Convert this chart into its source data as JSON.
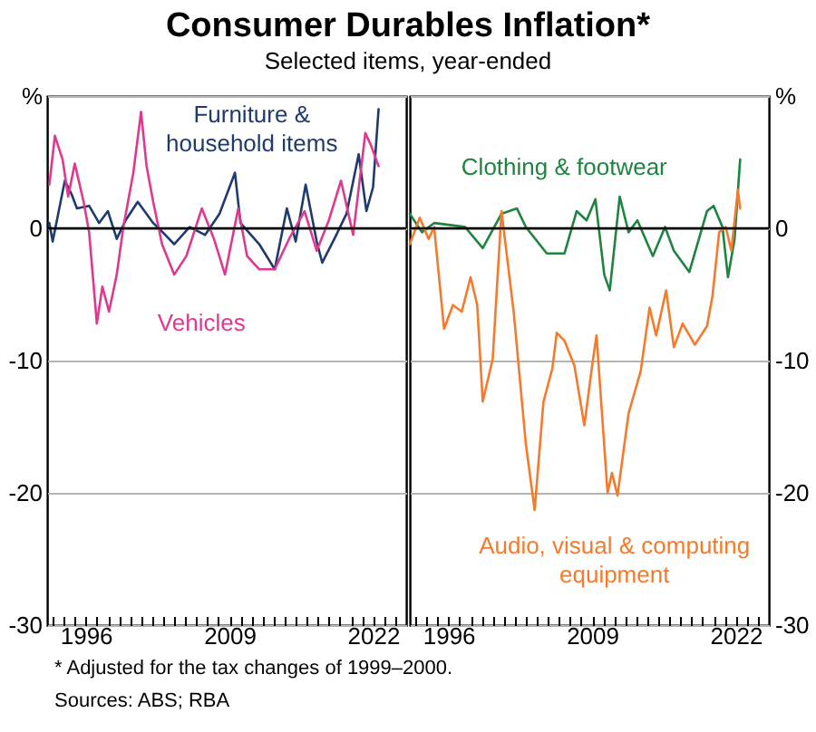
{
  "chart_data": [
    {
      "type": "line",
      "title": "Consumer Durables Inflation*",
      "subtitle": "Selected items, year-ended",
      "annotations": [
        "* Adjusted for the tax changes of 1999–2000.",
        "Sources: ABS; RBA"
      ],
      "xlim": [
        1992.5,
        2025
      ],
      "ylim": [
        -30,
        10
      ],
      "xticks": [
        {
          "value": 1993,
          "label": null
        },
        {
          "value": 1994,
          "label": null
        },
        {
          "value": 1995,
          "label": null
        },
        1996,
        {
          "value": 1997,
          "label": null
        },
        {
          "value": 1998,
          "label": null
        },
        {
          "value": 1999,
          "label": null
        },
        {
          "value": 2000,
          "label": null
        },
        {
          "value": 2001,
          "label": null
        },
        {
          "value": 2002,
          "label": null
        },
        {
          "value": 2003,
          "label": null
        },
        {
          "value": 2004,
          "label": null
        },
        {
          "value": 2005,
          "label": null
        },
        {
          "value": 2006,
          "label": null
        },
        {
          "value": 2007,
          "label": null
        },
        {
          "value": 2008,
          "label": null
        },
        2009,
        {
          "value": 2010,
          "label": null
        },
        {
          "value": 2011,
          "label": null
        },
        {
          "value": 2012,
          "label": null
        },
        {
          "value": 2013,
          "label": null
        },
        {
          "value": 2014,
          "label": null
        },
        {
          "value": 2015,
          "label": null
        },
        {
          "value": 2016,
          "label": null
        },
        {
          "value": 2017,
          "label": null
        },
        {
          "value": 2018,
          "label": null
        },
        {
          "value": 2019,
          "label": null
        },
        {
          "value": 2020,
          "label": null
        },
        {
          "value": 2021,
          "label": null
        },
        2022,
        {
          "value": 2023,
          "label": null
        },
        {
          "value": 2024,
          "label": null
        }
      ],
      "yticks": [
        -30,
        -20,
        -10,
        0,
        {
          "value": 10,
          "label": "%"
        }
      ],
      "grid": "y",
      "ref_lines": [
        {
          "axis": "y",
          "value": 0,
          "color": "#000000"
        }
      ],
      "series": [
        {
          "name": "Furniture & household items",
          "color": "#1f3a6e",
          "x": [
            1992.7,
            1993.0,
            1993.6,
            1994.1,
            1994.7,
            1995.2,
            1996.3,
            1997.2,
            1998.0,
            1998.8,
            1999.6,
            2000.7,
            2002.1,
            2003.2,
            2004.0,
            2005.4,
            2006.8,
            2008.1,
            2009.5,
            2010.0,
            2011.7,
            2013.1,
            2014.2,
            2015.0,
            2015.9,
            2016.9,
            2017.4,
            2018.5,
            2019.6,
            2020.7,
            2021.4,
            2022.0,
            2022.5
          ],
          "values": [
            0.4,
            -1.0,
            1.5,
            3.6,
            2.6,
            1.5,
            1.7,
            0.4,
            1.3,
            -0.8,
            0.6,
            2.0,
            0.4,
            -0.5,
            -1.2,
            0.1,
            -0.5,
            1.1,
            4.2,
            0.4,
            -1.2,
            -3.1,
            1.5,
            -1.0,
            3.3,
            -1.0,
            -2.6,
            -0.8,
            1.1,
            5.6,
            1.3,
            3.1,
            9.0
          ]
        },
        {
          "name": "Vehicles",
          "color": "#e0388f",
          "x": [
            1992.7,
            1993.2,
            1993.9,
            1994.4,
            1995.0,
            1995.8,
            1996.3,
            1997.0,
            1997.5,
            1998.1,
            1998.8,
            1999.4,
            2000.3,
            2001.0,
            2001.5,
            2002.1,
            2002.9,
            2004.0,
            2005.1,
            2006.5,
            2007.6,
            2008.6,
            2009.8,
            2010.6,
            2011.7,
            2013.1,
            2014.4,
            2015.8,
            2016.9,
            2018.0,
            2019.1,
            2020.2,
            2021.3,
            2021.8,
            2022.5
          ],
          "values": [
            3.3,
            7.0,
            5.2,
            2.4,
            4.9,
            2.0,
            -0.3,
            -7.2,
            -4.4,
            -6.3,
            -3.5,
            0.1,
            4.2,
            8.8,
            4.7,
            2.0,
            -1.2,
            -3.5,
            -2.1,
            1.5,
            -0.8,
            -3.5,
            1.5,
            -2.1,
            -3.1,
            -3.1,
            -0.8,
            1.3,
            -1.7,
            0.6,
            3.6,
            -0.5,
            7.2,
            6.3,
            4.7
          ]
        }
      ]
    },
    {
      "type": "line",
      "xlim": [
        1992.5,
        2025
      ],
      "ylim": [
        -30,
        10
      ],
      "xticks": [
        {
          "value": 1993,
          "label": null
        },
        {
          "value": 1994,
          "label": null
        },
        {
          "value": 1995,
          "label": null
        },
        1996,
        {
          "value": 1997,
          "label": null
        },
        {
          "value": 1998,
          "label": null
        },
        {
          "value": 1999,
          "label": null
        },
        {
          "value": 2000,
          "label": null
        },
        {
          "value": 2001,
          "label": null
        },
        {
          "value": 2002,
          "label": null
        },
        {
          "value": 2003,
          "label": null
        },
        {
          "value": 2004,
          "label": null
        },
        {
          "value": 2005,
          "label": null
        },
        {
          "value": 2006,
          "label": null
        },
        {
          "value": 2007,
          "label": null
        },
        {
          "value": 2008,
          "label": null
        },
        2009,
        {
          "value": 2010,
          "label": null
        },
        {
          "value": 2011,
          "label": null
        },
        {
          "value": 2012,
          "label": null
        },
        {
          "value": 2013,
          "label": null
        },
        {
          "value": 2014,
          "label": null
        },
        {
          "value": 2015,
          "label": null
        },
        {
          "value": 2016,
          "label": null
        },
        {
          "value": 2017,
          "label": null
        },
        {
          "value": 2018,
          "label": null
        },
        {
          "value": 2019,
          "label": null
        },
        {
          "value": 2020,
          "label": null
        },
        {
          "value": 2021,
          "label": null
        },
        2022,
        {
          "value": 2023,
          "label": null
        },
        {
          "value": 2024,
          "label": null
        }
      ],
      "yticks": [
        -30,
        -20,
        -10,
        0,
        {
          "value": 10,
          "label": "%"
        }
      ],
      "grid": "y",
      "ref_lines": [
        {
          "axis": "y",
          "value": 0,
          "color": "#000000"
        }
      ],
      "series": [
        {
          "name": "Clothing & footwear",
          "color": "#1e8440",
          "x": [
            1992.5,
            1993.6,
            1994.7,
            1997.5,
            1999.1,
            2000.8,
            2002.2,
            2003.0,
            2004.9,
            2006.5,
            2007.6,
            2008.5,
            2009.3,
            2010.1,
            2010.6,
            2011.5,
            2012.3,
            2013.1,
            2014.5,
            2015.6,
            2016.4,
            2017.8,
            2019.4,
            2020.0,
            2020.8,
            2021.3,
            2021.9,
            2022.4
          ],
          "values": [
            1.1,
            -0.3,
            0.4,
            0.1,
            -1.5,
            1.1,
            1.5,
            0.1,
            -1.9,
            -1.9,
            1.3,
            0.6,
            2.2,
            -3.5,
            -4.7,
            2.4,
            -0.3,
            0.6,
            -2.1,
            0.1,
            -1.7,
            -3.3,
            1.3,
            1.7,
            0.1,
            -3.7,
            -0.8,
            5.2
          ]
        },
        {
          "name": "Audio, visual & computing equipment",
          "color": "#f7792b",
          "x": [
            1992.5,
            1993.4,
            1994.2,
            1994.7,
            1995.6,
            1996.4,
            1997.2,
            1998.0,
            1998.6,
            1999.1,
            2000.0,
            2000.8,
            2001.9,
            2003.0,
            2003.8,
            2004.6,
            2005.4,
            2005.8,
            2006.5,
            2007.4,
            2008.3,
            2009.0,
            2009.4,
            2010.4,
            2010.8,
            2011.3,
            2012.3,
            2013.4,
            2014.2,
            2014.8,
            2015.7,
            2016.4,
            2017.2,
            2018.3,
            2019.4,
            2019.9,
            2020.5,
            2021.1,
            2021.6,
            2022.2,
            2022.4
          ],
          "values": [
            -1.2,
            0.8,
            -0.8,
            0.1,
            -7.6,
            -5.8,
            -6.3,
            -3.7,
            -5.8,
            -13.1,
            -9.9,
            1.3,
            -6.3,
            -16.3,
            -21.3,
            -13.1,
            -10.6,
            -7.9,
            -8.5,
            -10.4,
            -14.9,
            -10.4,
            -8.1,
            -20.0,
            -18.5,
            -20.2,
            -14.0,
            -10.8,
            -6.0,
            -8.1,
            -4.7,
            -9.0,
            -7.2,
            -8.8,
            -7.4,
            -5.1,
            -0.3,
            0.1,
            -1.7,
            2.9,
            1.5
          ]
        }
      ]
    }
  ]
}
